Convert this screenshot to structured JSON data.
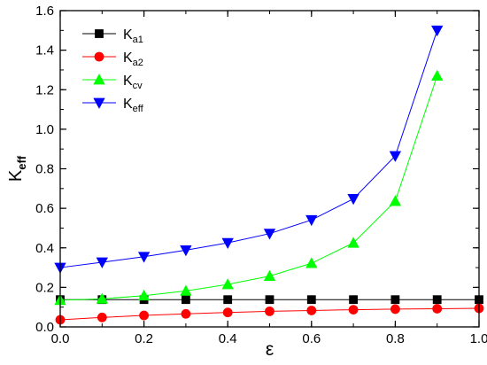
{
  "chart_data": {
    "type": "line",
    "xlabel": "ε",
    "ylabel": {
      "main": "K",
      "sub": "eff"
    },
    "xlim": [
      0.0,
      1.0
    ],
    "ylim": [
      0.0,
      1.6
    ],
    "x_ticks": [
      "0.0",
      "0.2",
      "0.4",
      "0.6",
      "0.8",
      "1.0"
    ],
    "y_ticks": [
      "0.0",
      "0.2",
      "0.4",
      "0.6",
      "0.8",
      "1.0",
      "1.2",
      "1.4",
      "1.6"
    ],
    "x_minor_step": 0.1,
    "y_minor_step": 0.1,
    "grid": false,
    "legend_position": "top-left",
    "series": [
      {
        "name": "Ka1",
        "label_main": "K",
        "label_sub": "a1",
        "color": "#000000",
        "marker": "square",
        "x": [
          0.0,
          0.1,
          0.2,
          0.3,
          0.4,
          0.5,
          0.6,
          0.7,
          0.8,
          0.9,
          1.0
        ],
        "y": [
          0.138,
          0.138,
          0.138,
          0.138,
          0.138,
          0.138,
          0.138,
          0.138,
          0.138,
          0.138,
          0.138
        ]
      },
      {
        "name": "Ka2",
        "label_main": "K",
        "label_sub": "a2",
        "color": "#ff0000",
        "marker": "circle",
        "x": [
          0.0,
          0.1,
          0.2,
          0.3,
          0.4,
          0.5,
          0.6,
          0.7,
          0.8,
          0.9,
          1.0
        ],
        "y": [
          0.036,
          0.048,
          0.058,
          0.066,
          0.073,
          0.079,
          0.083,
          0.087,
          0.09,
          0.092,
          0.094
        ]
      },
      {
        "name": "Kcv",
        "label_main": "K",
        "label_sub": "cv",
        "color": "#00ff00",
        "marker": "triangle-up",
        "x": [
          0.0,
          0.1,
          0.2,
          0.3,
          0.4,
          0.5,
          0.6,
          0.7,
          0.8,
          0.9
        ],
        "y": [
          0.135,
          0.142,
          0.158,
          0.182,
          0.215,
          0.257,
          0.322,
          0.425,
          0.636,
          1.27
        ]
      },
      {
        "name": "Keff",
        "label_main": "K",
        "label_sub": "eff",
        "color": "#0000ff",
        "marker": "triangle-down",
        "x": [
          0.0,
          0.1,
          0.2,
          0.3,
          0.4,
          0.5,
          0.6,
          0.7,
          0.8,
          0.9
        ],
        "y": [
          0.3,
          0.327,
          0.355,
          0.388,
          0.425,
          0.472,
          0.541,
          0.648,
          0.865,
          1.5
        ]
      }
    ]
  }
}
